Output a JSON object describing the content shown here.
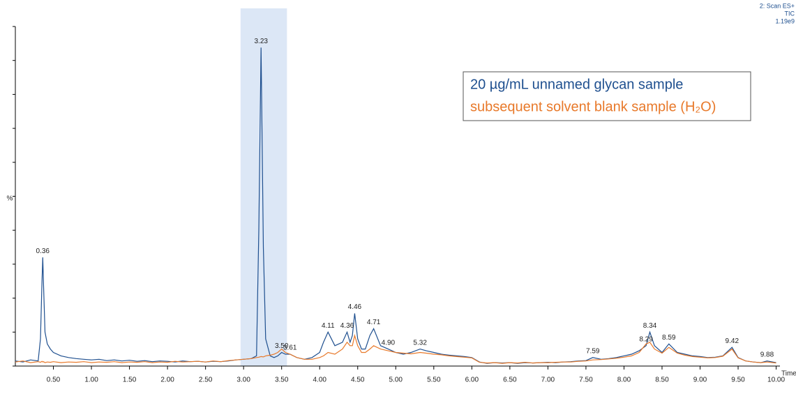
{
  "chart_data": {
    "type": "line",
    "info": [
      "2: Scan ES+",
      "TIC",
      "1.19e9"
    ],
    "ylabel": "%",
    "xlabel": "Time",
    "x": [
      0.0,
      0.1,
      0.2,
      0.3,
      0.33,
      0.35,
      0.36,
      0.37,
      0.39,
      0.42,
      0.46,
      0.5,
      0.6,
      0.7,
      0.8,
      0.9,
      1.0,
      1.1,
      1.2,
      1.3,
      1.4,
      1.5,
      1.6,
      1.7,
      1.8,
      1.9,
      2.0,
      2.1,
      2.2,
      2.3,
      2.4,
      2.5,
      2.6,
      2.7,
      2.8,
      2.9,
      3.0,
      3.1,
      3.17,
      3.2,
      3.23,
      3.26,
      3.29,
      3.35,
      3.4,
      3.45,
      3.5,
      3.55,
      3.61,
      3.7,
      3.8,
      3.9,
      4.0,
      4.05,
      4.11,
      4.2,
      4.3,
      4.36,
      4.4,
      4.43,
      4.46,
      4.5,
      4.55,
      4.6,
      4.66,
      4.71,
      4.8,
      4.9,
      5.0,
      5.1,
      5.2,
      5.32,
      5.4,
      5.5,
      5.6,
      5.7,
      5.8,
      5.9,
      6.0,
      6.1,
      6.2,
      6.3,
      6.4,
      6.5,
      6.6,
      6.7,
      6.8,
      6.9,
      7.0,
      7.1,
      7.2,
      7.3,
      7.4,
      7.5,
      7.59,
      7.7,
      7.8,
      7.9,
      8.0,
      8.1,
      8.2,
      8.29,
      8.34,
      8.4,
      8.5,
      8.59,
      8.7,
      8.8,
      8.9,
      9.0,
      9.1,
      9.2,
      9.3,
      9.42,
      9.5,
      9.6,
      9.7,
      9.8,
      9.88,
      10.0
    ],
    "series": [
      {
        "name": "20 µg/mL unnamed glycan sample",
        "color": "#1e4f8f",
        "values": [
          1.5,
          1.2,
          1.8,
          1.5,
          8,
          25,
          32,
          24,
          10,
          6.5,
          5,
          4,
          3,
          2.5,
          2.2,
          2.0,
          1.8,
          2.0,
          1.6,
          1.8,
          1.5,
          1.7,
          1.4,
          1.6,
          1.3,
          1.5,
          1.4,
          1.2,
          1.5,
          1.3,
          1.4,
          1.2,
          1.4,
          1.3,
          1.5,
          1.8,
          2.0,
          2.2,
          3,
          40,
          93.8,
          35,
          8,
          3,
          2.5,
          3,
          4,
          3.5,
          3.5,
          2.5,
          2,
          2.5,
          4,
          7,
          10,
          6,
          7,
          10,
          7,
          9,
          15.5,
          8,
          5,
          5,
          9,
          11,
          6,
          5,
          4,
          3.5,
          4,
          5,
          4.5,
          4,
          3.5,
          3.2,
          3,
          2.8,
          2.5,
          1.2,
          0.8,
          1,
          0.9,
          1,
          0.8,
          1,
          0.9,
          1,
          1.1,
          1,
          1.2,
          1.3,
          1.5,
          1.6,
          2.5,
          2,
          2.2,
          2.5,
          3,
          3.5,
          4.5,
          6,
          10,
          6,
          4,
          6.5,
          4,
          3.5,
          3,
          2.8,
          2.5,
          2.6,
          3,
          5.5,
          2.5,
          1.5,
          1.2,
          1,
          1.5,
          1
        ]
      },
      {
        "name": "subsequent solvent blank sample (H₂O)",
        "color": "#e8792a",
        "values": [
          1.2,
          1.5,
          1.0,
          1.3,
          1.1,
          1.4,
          1.2,
          1.3,
          1.0,
          1.2,
          1.1,
          1.3,
          1.0,
          1.2,
          1.1,
          1.3,
          1.0,
          1.2,
          1.1,
          1.3,
          1.0,
          1.2,
          1.1,
          1.3,
          1.0,
          1.2,
          1.1,
          1.4,
          1.2,
          1.3,
          1.4,
          1.2,
          1.5,
          1.3,
          1.6,
          1.8,
          2.0,
          2.2,
          2.5,
          2.6,
          2.8,
          2.7,
          3,
          3.2,
          3.5,
          4,
          5,
          4,
          3.5,
          2.5,
          2,
          2,
          2.5,
          3,
          4,
          3.5,
          5,
          7,
          6,
          6,
          9,
          6,
          4,
          4,
          5,
          6,
          5,
          4.5,
          4,
          3.8,
          3.6,
          4,
          3.8,
          3.5,
          3.3,
          3,
          2.8,
          2.6,
          2.4,
          1.1,
          0.9,
          1,
          0.8,
          1,
          0.9,
          1.1,
          0.9,
          1,
          1,
          1.1,
          1.2,
          1.2,
          1.4,
          1.5,
          1.8,
          1.9,
          2.1,
          2.3,
          2.6,
          3,
          4,
          6.5,
          7,
          5,
          3.8,
          5.5,
          3.8,
          3.2,
          2.8,
          2.6,
          2.4,
          2.5,
          2.9,
          5,
          2.4,
          1.5,
          1.2,
          1,
          1.2,
          0.9
        ]
      }
    ],
    "annotations": [
      {
        "x": 0.36,
        "y": 32,
        "label": "0.36"
      },
      {
        "x": 3.23,
        "y": 93.8,
        "label": "3.23"
      },
      {
        "x": 3.5,
        "y": 4,
        "label": "3.50"
      },
      {
        "x": 3.61,
        "y": 3.5,
        "label": "3.61"
      },
      {
        "x": 4.11,
        "y": 10,
        "label": "4.11"
      },
      {
        "x": 4.36,
        "y": 10,
        "label": "4.36"
      },
      {
        "x": 4.46,
        "y": 15.5,
        "label": "4.46"
      },
      {
        "x": 4.71,
        "y": 11,
        "label": "4.71"
      },
      {
        "x": 4.9,
        "y": 5,
        "label": "4.90"
      },
      {
        "x": 5.32,
        "y": 5,
        "label": "5.32"
      },
      {
        "x": 7.59,
        "y": 2.5,
        "label": "7.59"
      },
      {
        "x": 8.29,
        "y": 6,
        "label": "8.29"
      },
      {
        "x": 8.34,
        "y": 10,
        "label": "8.34"
      },
      {
        "x": 8.59,
        "y": 6.5,
        "label": "8.59"
      },
      {
        "x": 9.42,
        "y": 5.5,
        "label": "9.42"
      },
      {
        "x": 9.88,
        "y": 1.5,
        "label": "9.88"
      }
    ],
    "highlight": [
      2.96,
      3.57
    ],
    "highlight_color": "#dce7f6",
    "xlim": [
      0,
      10.05
    ],
    "ylim": [
      0,
      100
    ],
    "xticks": [
      {
        "value": 0.5,
        "label": "0.50"
      },
      {
        "value": 1,
        "label": "1.00"
      },
      {
        "value": 1.5,
        "label": "1.50"
      },
      {
        "value": 2,
        "label": "2.00"
      },
      {
        "value": 2.5,
        "label": "2.50"
      },
      {
        "value": 3,
        "label": "3.00"
      },
      {
        "value": 3.5,
        "label": "3.50"
      },
      {
        "value": 4,
        "label": "4.00"
      },
      {
        "value": 4.5,
        "label": "4.50"
      },
      {
        "value": 5,
        "label": "5.00"
      },
      {
        "value": 5.5,
        "label": "5.50"
      },
      {
        "value": 6,
        "label": "6.00"
      },
      {
        "value": 6.5,
        "label": "6.50"
      },
      {
        "value": 7,
        "label": "7.00"
      },
      {
        "value": 7.5,
        "label": "7.50"
      },
      {
        "value": 8,
        "label": "8.00"
      },
      {
        "value": 8.5,
        "label": "8.50"
      },
      {
        "value": 9,
        "label": "9.00"
      },
      {
        "value": 9.5,
        "label": "9.50"
      },
      {
        "value": 10,
        "label": "10.00"
      }
    ],
    "yticks": [
      0,
      10,
      20,
      30,
      40,
      50,
      60,
      70,
      80,
      90,
      100
    ],
    "ytick_labels": false,
    "grid": false
  }
}
